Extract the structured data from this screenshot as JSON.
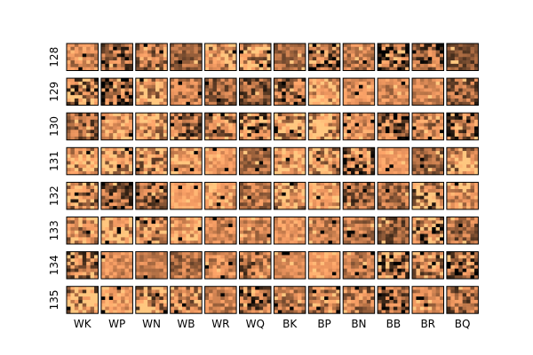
{
  "chart_data": {
    "type": "heatmap",
    "title": "",
    "xlabel": "",
    "ylabel": "",
    "columns": [
      "WK",
      "WP",
      "WN",
      "WB",
      "WR",
      "WQ",
      "BK",
      "BP",
      "BN",
      "BB",
      "BR",
      "BQ"
    ],
    "rows": [
      "128",
      "129",
      "130",
      "131",
      "132",
      "133",
      "134",
      "135"
    ],
    "cell_grid": [
      8,
      8
    ],
    "colormap": "copper",
    "colormap_stops": [
      "#000000",
      "#3a2617",
      "#7a4d30",
      "#b97447",
      "#e9935d",
      "#ffa66a",
      "#ffc77f"
    ],
    "border_color": "#000000",
    "grid": false
  }
}
